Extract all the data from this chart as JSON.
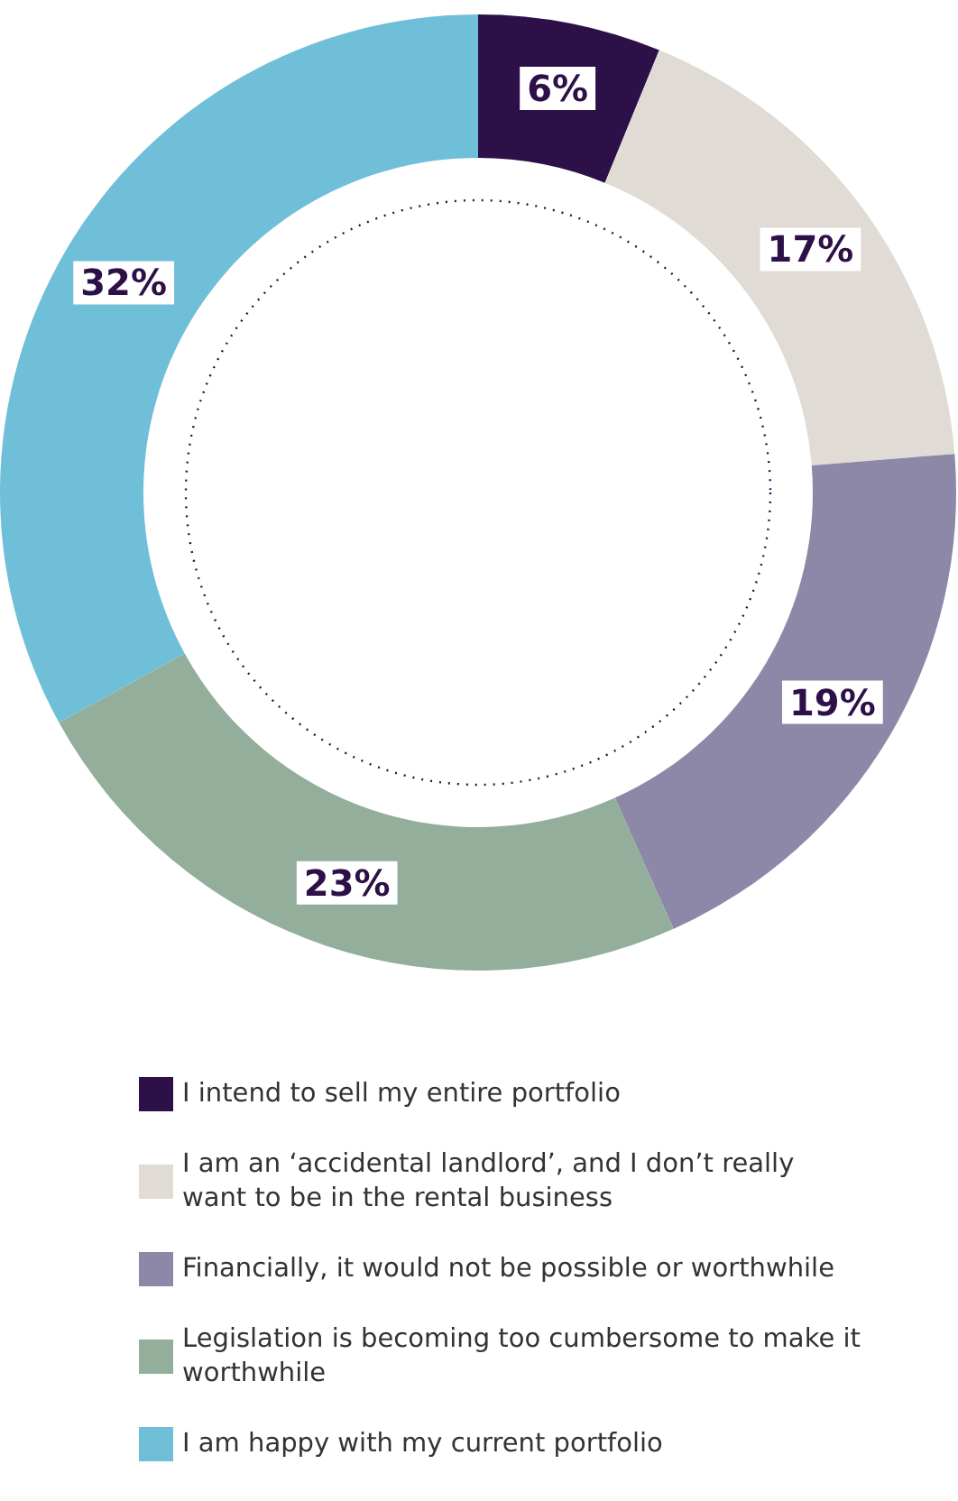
{
  "chart_data": {
    "type": "donut",
    "categories": [
      "I intend to sell my entire portfolio",
      "I am an ‘accidental landlord’, and I don’t really want to be in the rental business",
      "Financially, it would not be possible or worthwhile",
      "Legislation is becoming too cumbersome to make it worthwhile",
      "I am happy with my current portfolio"
    ],
    "values": [
      6,
      17,
      19,
      23,
      32
    ],
    "value_labels": [
      "6%",
      "17%",
      "19%",
      "23%",
      "32%"
    ],
    "colors": [
      "#2e1048",
      "#e0dbd4",
      "#8d88a8",
      "#93ae9b",
      "#70bfd9"
    ],
    "legend": "bottom"
  }
}
